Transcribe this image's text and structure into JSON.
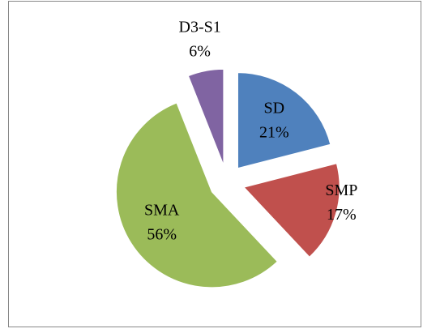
{
  "chart_data": {
    "type": "pie",
    "categories": [
      "SD",
      "SMP",
      "SMA",
      "D3-S1"
    ],
    "values": [
      21,
      17,
      56,
      6
    ],
    "value_labels": [
      "21%",
      "17%",
      "56%",
      "6%"
    ],
    "colors": [
      "#4f81bd",
      "#c0504d",
      "#9bbb59",
      "#8064a2"
    ],
    "exploded": true
  }
}
